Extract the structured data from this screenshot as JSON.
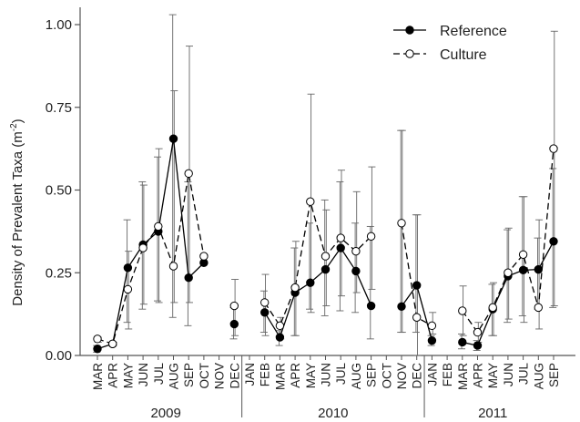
{
  "chart_data": {
    "type": "line",
    "title": "",
    "xlabel": "",
    "ylabel": "Density of Prevalent Taxa (m",
    "ylabel_sup": "-2",
    "ylabel_close": ")",
    "ylim": [
      0,
      1.05
    ],
    "y_ticks": [
      0.0,
      0.25,
      0.5,
      0.75,
      1.0
    ],
    "y_tick_labels": [
      "0.00",
      "0.25",
      "0.50",
      "0.75",
      "1.00"
    ],
    "grid": false,
    "legend_position": "top-right",
    "categories": [
      "MAR",
      "APR",
      "MAY",
      "JUN",
      "JUL",
      "AUG",
      "SEP",
      "OCT",
      "NOV",
      "DEC",
      "JAN",
      "FEB",
      "MAR",
      "APR",
      "MAY",
      "JUN",
      "JUL",
      "AUG",
      "SEP",
      "OCT",
      "NOV",
      "DEC",
      "JAN",
      "FEB",
      "MAR",
      "APR",
      "MAY",
      "JUN",
      "JUL",
      "AUG",
      "SEP"
    ],
    "year_groups": [
      {
        "label": "2009",
        "start": 0,
        "end": 9
      },
      {
        "label": "2010",
        "start": 10,
        "end": 21
      },
      {
        "label": "2011",
        "start": 22,
        "end": 30
      }
    ],
    "series": [
      {
        "name": "Reference",
        "marker": "filled-circle",
        "line": "solid",
        "color": "#000000",
        "values": [
          0.02,
          0.035,
          0.265,
          0.335,
          0.375,
          0.655,
          0.235,
          0.28,
          null,
          0.095,
          null,
          0.13,
          0.055,
          0.19,
          0.22,
          0.26,
          0.325,
          0.255,
          0.15,
          null,
          0.148,
          0.212,
          0.045,
          null,
          0.04,
          0.03,
          0.14,
          0.24,
          0.258,
          0.26,
          0.345
        ],
        "err_low": [
          0.01,
          0.03,
          0.1,
          0.14,
          0.165,
          0.115,
          0.09,
          null,
          null,
          0.05,
          null,
          0.07,
          0.03,
          0.06,
          0.14,
          0.12,
          0.135,
          0.13,
          0.05,
          null,
          0.07,
          0.07,
          0.03,
          null,
          0.02,
          0.015,
          0.06,
          0.1,
          0.12,
          0.14,
          0.145
        ],
        "err_high": [
          0.03,
          0.04,
          0.41,
          0.525,
          0.6,
          1.03,
          0.525,
          null,
          null,
          0.145,
          null,
          0.195,
          0.075,
          0.325,
          0.4,
          0.47,
          0.525,
          0.4,
          0.39,
          null,
          0.68,
          0.425,
          0.06,
          null,
          0.065,
          0.045,
          0.215,
          0.38,
          0.48,
          0.355,
          0.565
        ]
      },
      {
        "name": "Culture",
        "marker": "open-circle",
        "line": "dashed",
        "color": "#000000",
        "values": [
          0.05,
          0.035,
          0.2,
          0.325,
          0.39,
          0.27,
          0.55,
          0.3,
          null,
          0.15,
          null,
          0.16,
          0.09,
          0.205,
          0.465,
          0.3,
          0.355,
          0.315,
          0.36,
          null,
          0.4,
          0.115,
          0.09,
          null,
          0.135,
          0.07,
          0.145,
          0.25,
          0.305,
          0.145,
          0.625
        ],
        "err_low": [
          0.04,
          0.03,
          0.08,
          0.155,
          0.16,
          0.16,
          0.16,
          null,
          null,
          0.06,
          null,
          0.06,
          0.05,
          0.06,
          0.13,
          0.15,
          0.18,
          0.19,
          0.2,
          null,
          0.07,
          0.0,
          0.065,
          null,
          0.06,
          0.04,
          0.06,
          0.11,
          0.1,
          0.08,
          0.15
        ],
        "err_high": [
          0.055,
          0.04,
          0.315,
          0.515,
          0.625,
          0.8,
          0.935,
          null,
          null,
          0.23,
          null,
          0.245,
          0.115,
          0.345,
          0.79,
          0.44,
          0.56,
          0.495,
          0.57,
          null,
          0.68,
          0.425,
          0.13,
          null,
          0.21,
          0.1,
          0.22,
          0.385,
          0.48,
          0.41,
          0.98
        ]
      }
    ]
  }
}
